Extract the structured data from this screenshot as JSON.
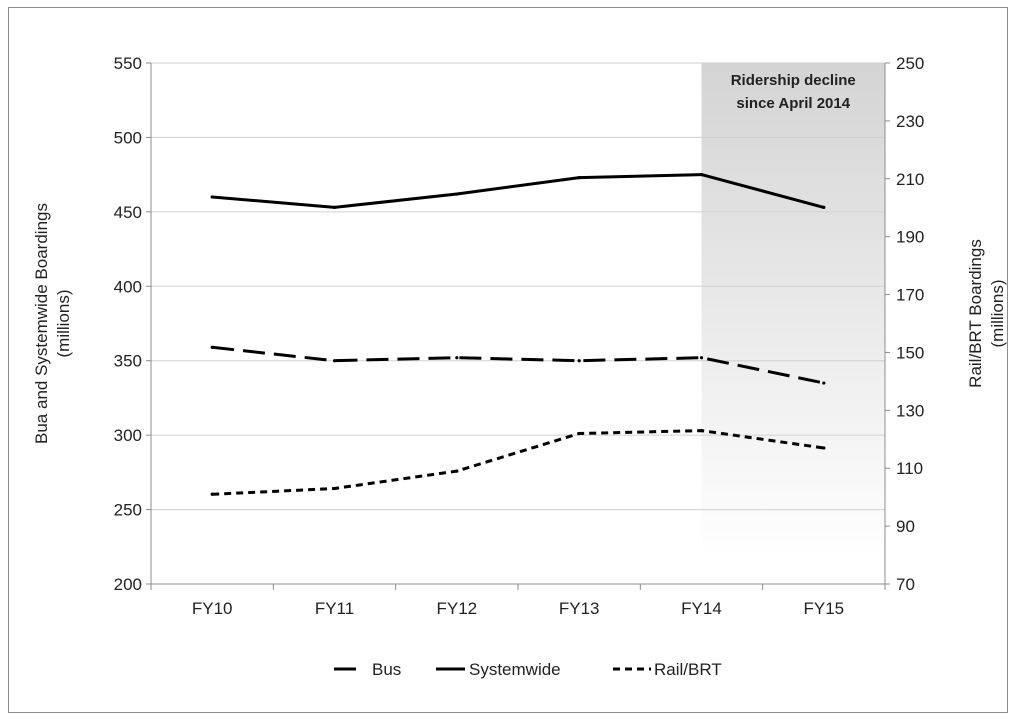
{
  "chart_data": {
    "type": "line",
    "categories": [
      "FY10",
      "FY11",
      "FY12",
      "FY13",
      "FY14",
      "FY15"
    ],
    "series": [
      {
        "name": "Bus",
        "axis": "left",
        "style": "long-dash",
        "values": [
          359,
          350,
          352,
          350,
          352,
          335
        ]
      },
      {
        "name": "Systemwide",
        "axis": "left",
        "style": "solid",
        "values": [
          460,
          453,
          462,
          473,
          475,
          453
        ]
      },
      {
        "name": "Rail/BRT",
        "axis": "right",
        "style": "short-dash",
        "values": [
          101,
          103,
          109,
          122,
          123,
          117
        ]
      }
    ],
    "y_left": {
      "label_line1": "Bua and Systemwide Boardings",
      "label_line2": "(millions)",
      "range": [
        200,
        550
      ],
      "ticks": [
        200,
        250,
        300,
        350,
        400,
        450,
        500,
        550
      ]
    },
    "y_right": {
      "label_line1": "Rail/BRT Boardings",
      "label_line2": "(millions)",
      "range": [
        70,
        250
      ],
      "ticks": [
        70,
        90,
        110,
        130,
        150,
        170,
        190,
        210,
        230,
        250
      ]
    },
    "grid": true,
    "legend_position": "bottom",
    "highlight": {
      "from_category": "FY14",
      "to_category": "FY15",
      "label_line1": "Ridership decline",
      "label_line2": "since April 2014"
    }
  }
}
